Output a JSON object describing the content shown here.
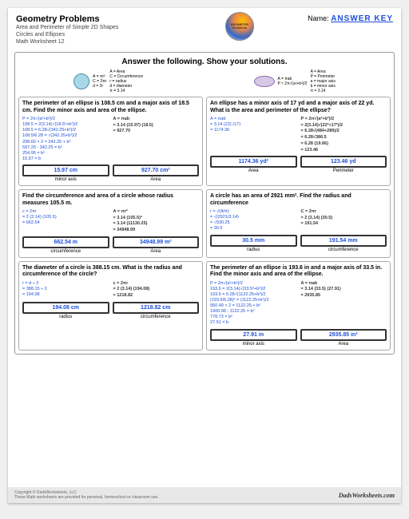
{
  "header": {
    "title": "Geometry Problems",
    "subtitle1": "Area and Perimeter of Simple 2D Shapes",
    "subtitle2": "Circles and Ellipses",
    "subtitle3": "Math Worksheet 12",
    "logo_top": "GEOMETRY",
    "logo_bottom": "Problems",
    "name_label": "Name:",
    "answer_key": "ANSWER KEY"
  },
  "instruction": "Answer the following.  Show your solutions.",
  "formulas": {
    "circle": {
      "label": "CIRCLE",
      "f": "A = πr²\nC = 2πr\nd = 2r",
      "legend": "A = Area\nC = Circumference\nr = radius\nd = diameter\nπ = 3.14"
    },
    "ellipse": {
      "label": "ELLIPSE",
      "f": "A = πab\nP ≈ 2π√(a²+b²)/2",
      "legend": "A = Area\nP = Perimeter\na = major axis\nb = minor axis\nπ = 3.14"
    }
  },
  "problems": [
    {
      "prompt": "The perimeter of an ellipse is 108.5 cm and a major axis of 18.5 cm.  Find the minor axis and area of the ellipse.",
      "workL": "P = 2π√(a²+b²)/2\n108.5 = 2(3.14)√(18.5²+b²)/2\n108.5 = 6.28√(342.25+b²)/2\n108.5/6.28 = √(342.25+b²)/2\n298.60 × 2 = 342.25 + b²\n597.20 - 342.25 = b²\n254.95 = b²\n15.97 = b",
      "workR": "A = πab\n= 3.14 (15.97) (18.5)\n= 927.70",
      "ans": [
        {
          "v": "15.97 cm",
          "l": "minor axis"
        },
        {
          "v": "927.70 cm²",
          "l": "Area"
        }
      ]
    },
    {
      "prompt": "An ellipse has a minor axis of 17 yd and a major axis of 22 yd.  What is the area and perimeter of the ellipse?",
      "workL": "A = πab\n= 3.14 (22) (17)\n= 1174.36",
      "workR": "P = 2π√(a²+b²)/2\n= 2(3.14)√(22²+17²)/2\n= 6.28√(484+289)/2\n= 6.28√386.5\n= 6.28 (19.66)\n= 123.46",
      "ans": [
        {
          "v": "1174.36 yd²",
          "l": "Area"
        },
        {
          "v": "123.46 yd",
          "l": "Perimeter"
        }
      ]
    },
    {
      "prompt": "Find the circumference and area of a circle whose radius measures 105.5 m.",
      "workL": "c = 2πr\n= 2 (3.14) (105.5)\n= 662.54",
      "workR": "A = πr²\n= 3.14 (105.5)²\n= 3.14 (11130.25)\n= 34948.99",
      "ans": [
        {
          "v": "662.54 m",
          "l": "circumference"
        },
        {
          "v": "34948.99 m²",
          "l": "Area"
        }
      ]
    },
    {
      "prompt": "A circle has an area of 2921 mm².  Find the radius and circumference",
      "workL": "r = √(A/π)\n= √(2921/3.14)\n= √930.25\n= 30.5",
      "workR": "C = 2πr\n= 2 (3.14) (30.5)\n= 191.54",
      "ans": [
        {
          "v": "30.5 mm",
          "l": "radius"
        },
        {
          "v": "191.54 mm",
          "l": "circumference"
        }
      ]
    },
    {
      "prompt": "The diameter of a circle is 388.15 cm.  What is the radius and circumference of the circle?",
      "workL": "r = d ÷ 2\n= 388.15 ÷ 2\n= 194.08",
      "workR": "c = 2πr\n= 2 (3.14) (194.08)\n= 1218.82",
      "ans": [
        {
          "v": "194.08 cm",
          "l": "radius"
        },
        {
          "v": "1218.82 cm",
          "l": "circumference"
        }
      ]
    },
    {
      "prompt": "The perimeter of an ellipse is 193.6 in and a major axis of 33.5 in.  Find the minor axis and area of the ellipse.",
      "workL": "P = 2π√(a²+b²)/2\n193.6 = 2(3.14)√(33.5²+b²)/2\n193.6 = 6.28√(1122.25+b²)/2\n(193.6/6.28)² = (1122.25+b²)/2\n950.49 × 2 = 1122.25 + b²\n1900.98 - 1122.25 = b²\n778.73 = b²\n27.91 = b",
      "workR": "A = πab\n= 3.14 (33.5) (27.91)\n= 2935.85",
      "ans": [
        {
          "v": "27.91 in",
          "l": "minor axis"
        },
        {
          "v": "2935.85 in²",
          "l": "Area"
        }
      ]
    }
  ],
  "footer": {
    "copyright": "Copyright © DadsWorksheets, LLC",
    "note": "These Math worksheets are provided for personal, homeschool or classroom use.",
    "site": "DadsWorksheets.com"
  }
}
